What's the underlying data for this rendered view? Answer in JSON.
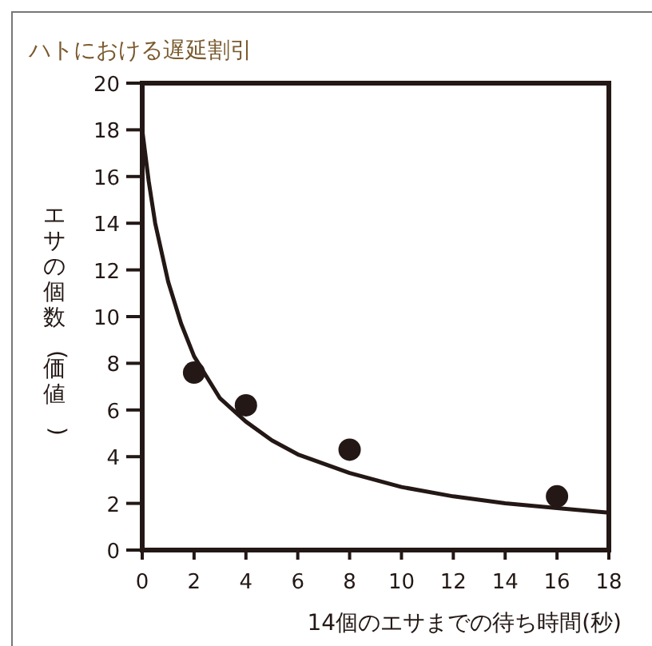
{
  "chart_data": {
    "type": "scatter",
    "title": "ハトにおける遅延割引",
    "xlabel": "14個のエサまでの待ち時間(秒)",
    "ylabel": "エサの個数(価値)",
    "xlim": [
      0,
      18
    ],
    "ylim": [
      0,
      20
    ],
    "xticks": [
      0,
      2,
      4,
      6,
      8,
      10,
      12,
      14,
      16,
      18
    ],
    "yticks": [
      0,
      2,
      4,
      6,
      8,
      10,
      12,
      14,
      16,
      18,
      20
    ],
    "series": [
      {
        "type": "scatter",
        "color": "#231815",
        "marker": "circle",
        "x": [
          2,
          4,
          8,
          16
        ],
        "values": [
          7.6,
          6.2,
          4.3,
          2.3
        ]
      },
      {
        "type": "line",
        "color": "#231815",
        "marker": "none",
        "x": [
          0,
          0.25,
          0.5,
          1,
          1.5,
          2,
          3,
          4,
          5,
          6,
          8,
          10,
          12,
          14,
          16,
          18
        ],
        "values": [
          18,
          15.8,
          14,
          11.5,
          9.7,
          8.3,
          6.5,
          5.5,
          4.7,
          4.1,
          3.3,
          2.7,
          2.3,
          2,
          1.8,
          1.6
        ]
      }
    ]
  }
}
